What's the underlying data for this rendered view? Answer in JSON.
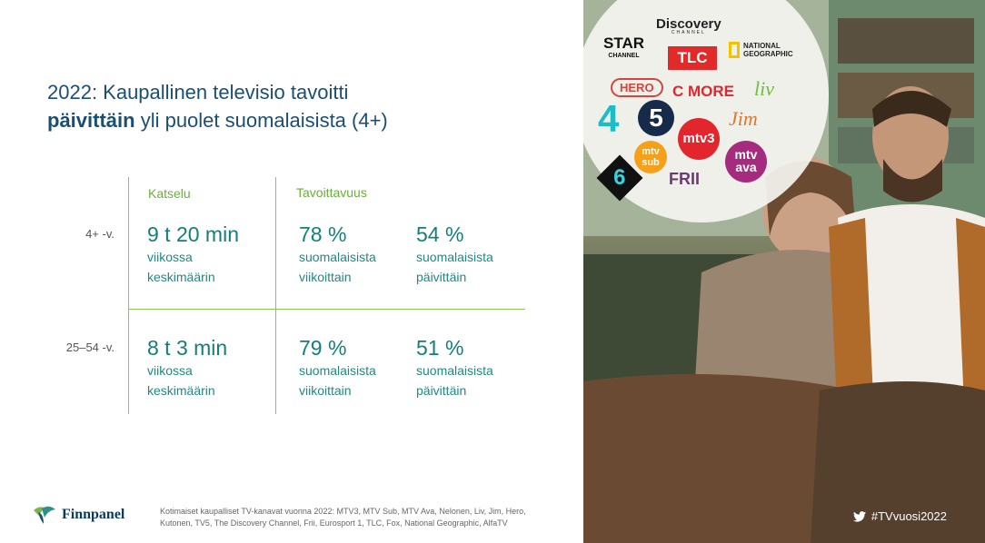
{
  "title": {
    "line1": "2022: Kaupallinen televisio tavoitti",
    "bold": "päivittäin",
    "line2_rest": " yli puolet suomalaisista (4+)"
  },
  "table": {
    "col_katselu": "Katselu",
    "col_tavoittavuus": "Tavoittavuus",
    "rows": [
      {
        "label": "4+ -v.",
        "watch_value": "9 t 20 min",
        "watch_sub1": "viikossa",
        "watch_sub2": "keskimäärin",
        "weekly_value": "78 %",
        "weekly_sub1": "suomalaisista",
        "weekly_sub2": "viikoittain",
        "daily_value": "54 %",
        "daily_sub1": "suomalaisista",
        "daily_sub2": "päivittäin"
      },
      {
        "label": "25–54 -v.",
        "watch_value": "8 t 3 min",
        "watch_sub1": "viikossa",
        "watch_sub2": "keskimäärin",
        "weekly_value": "79 %",
        "weekly_sub1": "suomalaisista",
        "weekly_sub2": "viikoittain",
        "daily_value": "51 %",
        "daily_sub1": "suomalaisista",
        "daily_sub2": "päivittäin"
      }
    ]
  },
  "footer": {
    "logo_text": "Finnpanel",
    "note": "Kotimaiset kaupalliset TV-kanavat vuonna 2022: MTV3, MTV Sub, MTV Ava, Nelonen, Liv, Jim, Hero, Kutonen, TV5, The Discovery Channel, Frii, Eurosport 1, TLC, Fox, National Geographic, AlfaTV"
  },
  "photo": {
    "hashtag": "#TVvuosi2022",
    "channel_logos": {
      "discovery": "Discovery",
      "discovery_sub": "CHANNEL",
      "star": "STAR",
      "star_sub": "CHANNEL",
      "tlc": "TLC",
      "natgeo1": "NATIONAL",
      "natgeo2": "GEOGRAPHIC",
      "hero": "HERO",
      "cmore": "C MORE",
      "liv": "liv",
      "four": "4",
      "five": "5",
      "jim": "Jim",
      "mtv3": "mtv3",
      "mtvsub1": "mtv",
      "mtvsub2": "sub",
      "six": "6",
      "frii": "FRII",
      "mtvava1": "mtv",
      "mtvava2": "ava"
    }
  },
  "colors": {
    "title": "#1a4f73",
    "accent_green": "#8dc35b",
    "value_teal": "#147f79"
  }
}
